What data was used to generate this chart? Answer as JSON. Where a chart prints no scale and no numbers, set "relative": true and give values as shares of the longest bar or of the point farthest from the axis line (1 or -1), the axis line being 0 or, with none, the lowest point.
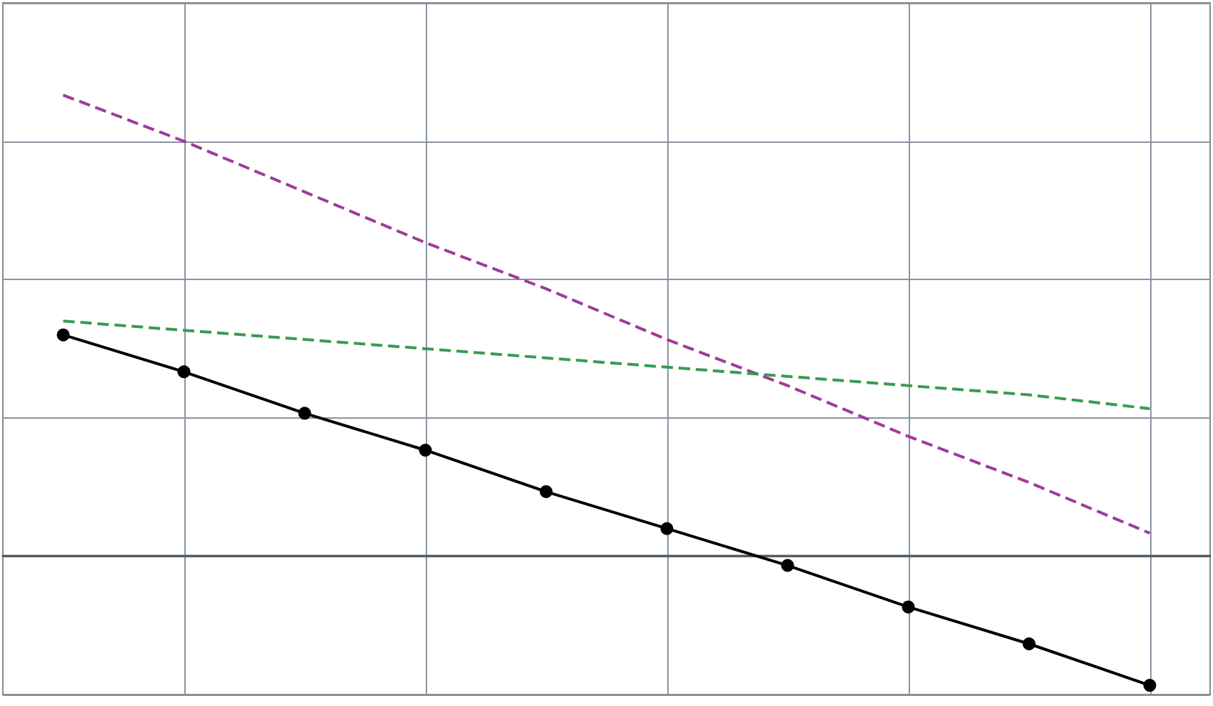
{
  "chart_data": {
    "type": "line",
    "relative": true,
    "categories": [
      null,
      null,
      null,
      null,
      null,
      null,
      null,
      null,
      null,
      null
    ],
    "series": [
      {
        "color": "#a03a9a",
        "line_style": "dashed",
        "marker": "none",
        "values": [
          1,
          0.9,
          0.79,
          0.68,
          0.58,
          0.47,
          0.37,
          0.26,
          0.16,
          0.05
        ]
      },
      {
        "color": "#3a9a55",
        "line_style": "dashed",
        "marker": "none",
        "values": [
          0.51,
          0.49,
          0.47,
          0.45,
          0.43,
          0.41,
          0.39,
          0.37,
          0.35,
          0.32
        ]
      },
      {
        "color": "#000000",
        "line_style": "solid",
        "marker": "circle",
        "values": [
          0.48,
          0.4,
          0.31,
          0.23,
          0.14,
          0.06,
          -0.02,
          -0.11,
          -0.19,
          -0.28
        ]
      }
    ],
    "grid": true
  }
}
